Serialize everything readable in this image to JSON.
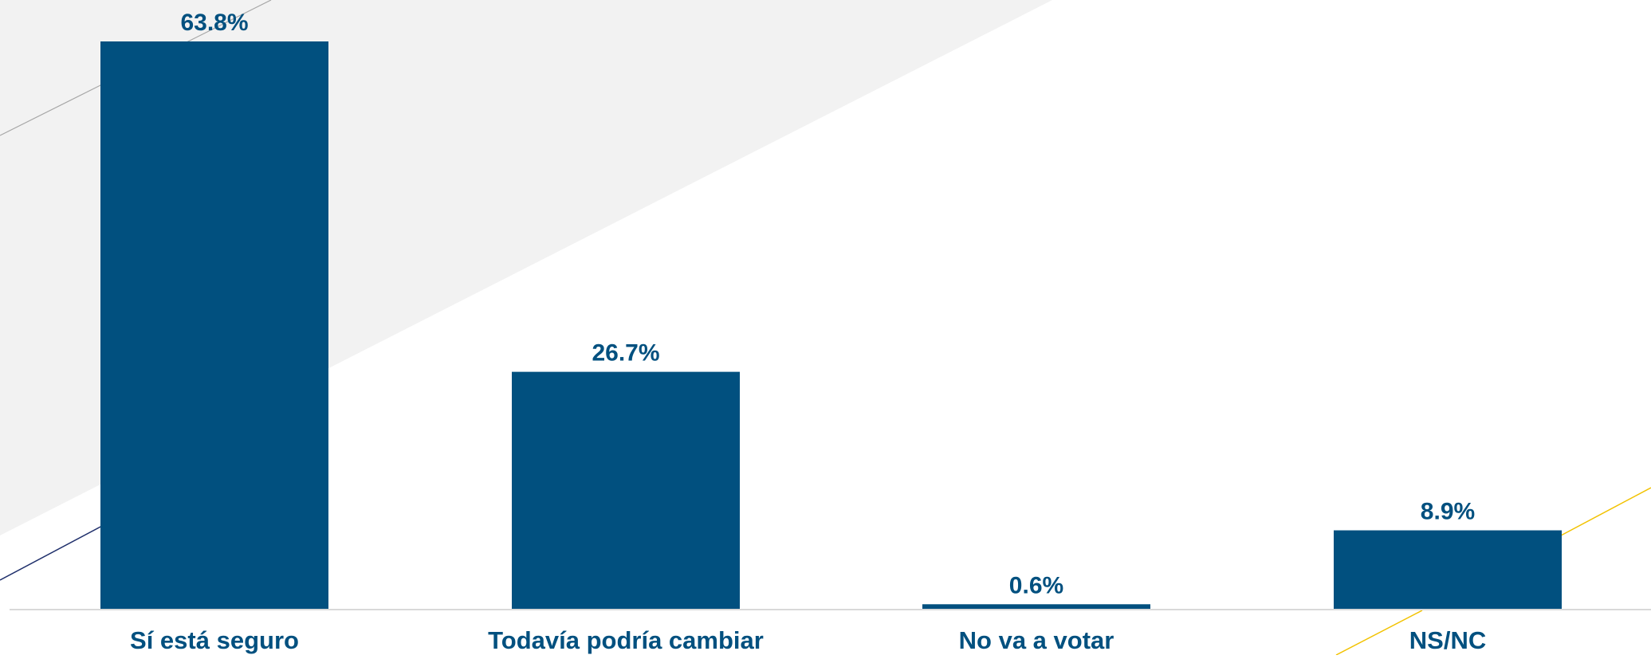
{
  "colors": {
    "bar": "#01507f",
    "label": "#01507f",
    "background_shape": "#f2f2f2",
    "baseline": "#d9d9d9",
    "accent_gray": "#a6a6a6",
    "accent_navy": "#1f2f6b",
    "accent_yellow": "#f2c200"
  },
  "chart_data": {
    "type": "bar",
    "categories": [
      "Sí está seguro",
      "Todavía podría cambiar",
      "No va a votar",
      "NS/NC"
    ],
    "values": [
      63.8,
      26.7,
      0.6,
      8.9
    ],
    "value_labels": [
      "63.8%",
      "26.7%",
      "0.6%",
      "8.9%"
    ],
    "unit": "%",
    "ylim": [
      0,
      63.8
    ],
    "grid": false,
    "legend": "none"
  }
}
